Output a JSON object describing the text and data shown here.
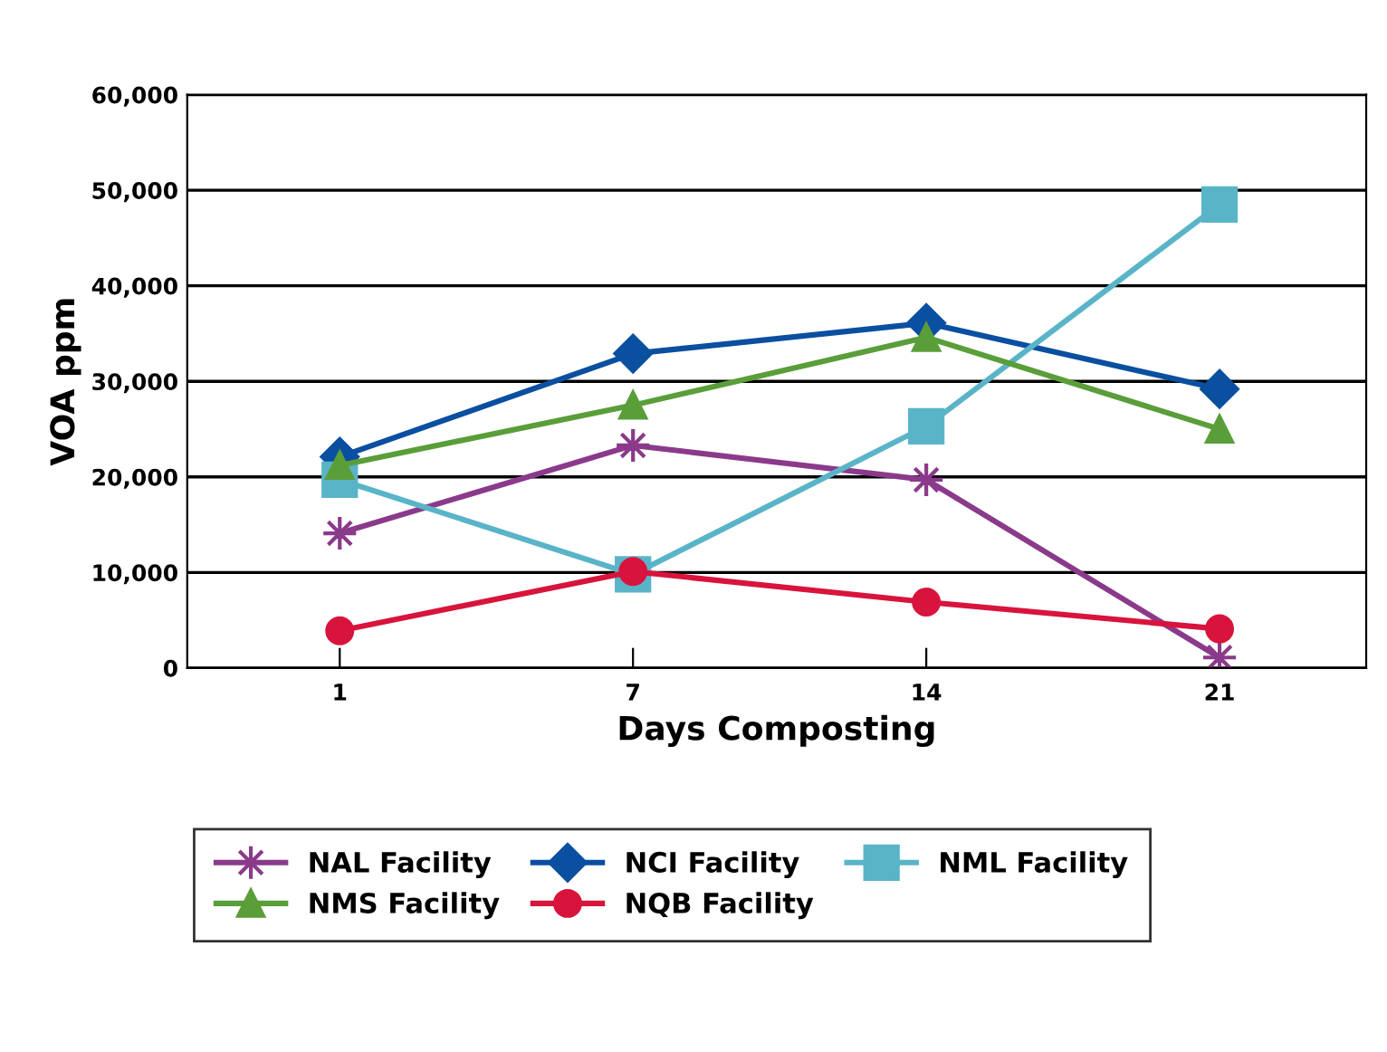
{
  "chart_data": {
    "type": "line",
    "xlabel": "Days Composting",
    "ylabel": "VOA ppm",
    "categories": [
      "1",
      "7",
      "14",
      "21"
    ],
    "ylim": [
      0,
      60000
    ],
    "yticks": [
      {
        "value": 0,
        "label": "0"
      },
      {
        "value": 10000,
        "label": "10,000"
      },
      {
        "value": 20000,
        "label": "20,000"
      },
      {
        "value": 30000,
        "label": "30,000"
      },
      {
        "value": 40000,
        "label": "40,000"
      },
      {
        "value": 50000,
        "label": "50,000"
      },
      {
        "value": 60000,
        "label": "60,000"
      }
    ],
    "grid": "y",
    "legend": "bottom",
    "line_style": "solid",
    "series": [
      {
        "name": "NAL Facility",
        "color": "#8b3a8b",
        "marker": "star",
        "values": [
          14100,
          23300,
          19700,
          1100
        ]
      },
      {
        "name": "NCI Facility",
        "color": "#0a4fa0",
        "marker": "diamond",
        "values": [
          22100,
          32900,
          36100,
          29200
        ]
      },
      {
        "name": "NML Facility",
        "color": "#5ab4c8",
        "marker": "square",
        "values": [
          19700,
          9800,
          25300,
          48500
        ]
      },
      {
        "name": "NMS Facility",
        "color": "#5a9e3a",
        "marker": "triangle",
        "values": [
          21200,
          27500,
          34600,
          25000
        ]
      },
      {
        "name": "NQB Facility",
        "color": "#d8143c",
        "marker": "circle",
        "values": [
          3900,
          10100,
          6900,
          4100
        ]
      }
    ]
  }
}
